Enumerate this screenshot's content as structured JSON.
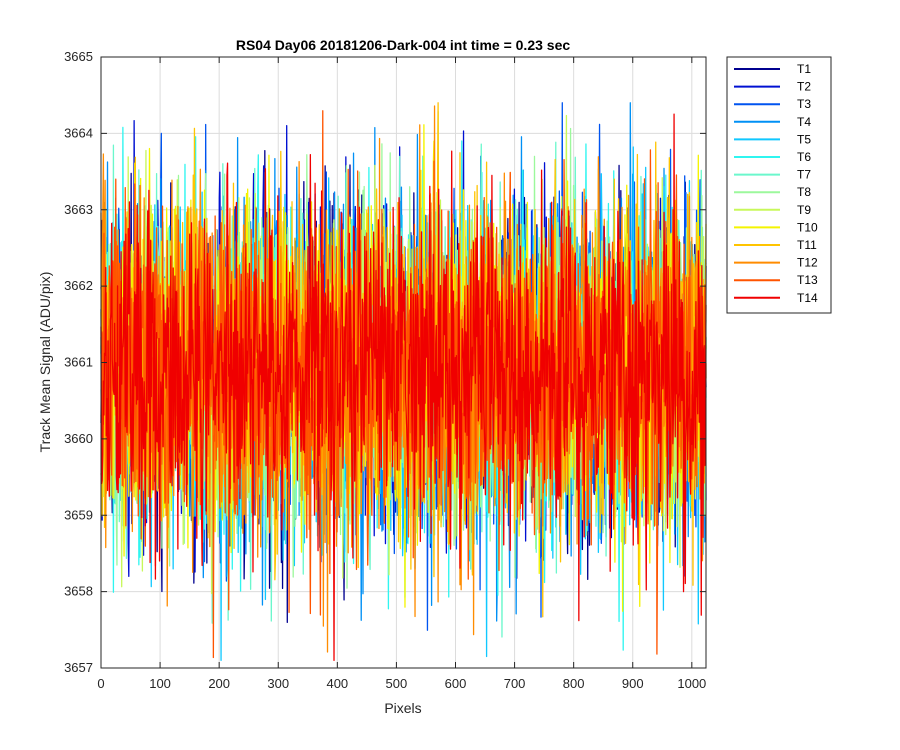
{
  "chart_data": {
    "type": "line",
    "title": "RS04 Day06 20181206-Dark-004 int time = 0.23 sec",
    "xlabel": "Pixels",
    "ylabel": "Track Mean Signal (ADU/pix)",
    "xlim": [
      0,
      1024
    ],
    "ylim": [
      3657,
      3665
    ],
    "xticks": [
      0,
      100,
      200,
      300,
      400,
      500,
      600,
      700,
      800,
      900,
      1000
    ],
    "yticks": [
      3657,
      3658,
      3659,
      3660,
      3661,
      3662,
      3663,
      3664,
      3665
    ],
    "grid": true,
    "legend_position": "outside-top-right",
    "noise_model": {
      "mean": 3660.9,
      "std": 1.05,
      "min": 3657.1,
      "max": 3664.4,
      "n_points": 1024
    },
    "series": [
      {
        "name": "T1",
        "color": "#00008f"
      },
      {
        "name": "T2",
        "color": "#0010d2"
      },
      {
        "name": "T3",
        "color": "#0054f0"
      },
      {
        "name": "T4",
        "color": "#0090f5"
      },
      {
        "name": "T5",
        "color": "#10c8ff"
      },
      {
        "name": "T6",
        "color": "#2ff5f0"
      },
      {
        "name": "T7",
        "color": "#6bf7cc"
      },
      {
        "name": "T8",
        "color": "#9cf89c"
      },
      {
        "name": "T9",
        "color": "#c8f85a"
      },
      {
        "name": "T10",
        "color": "#f4f400"
      },
      {
        "name": "T11",
        "color": "#ffc400"
      },
      {
        "name": "T12",
        "color": "#ff8c00"
      },
      {
        "name": "T13",
        "color": "#ff5400"
      },
      {
        "name": "T14",
        "color": "#f00000"
      }
    ]
  }
}
